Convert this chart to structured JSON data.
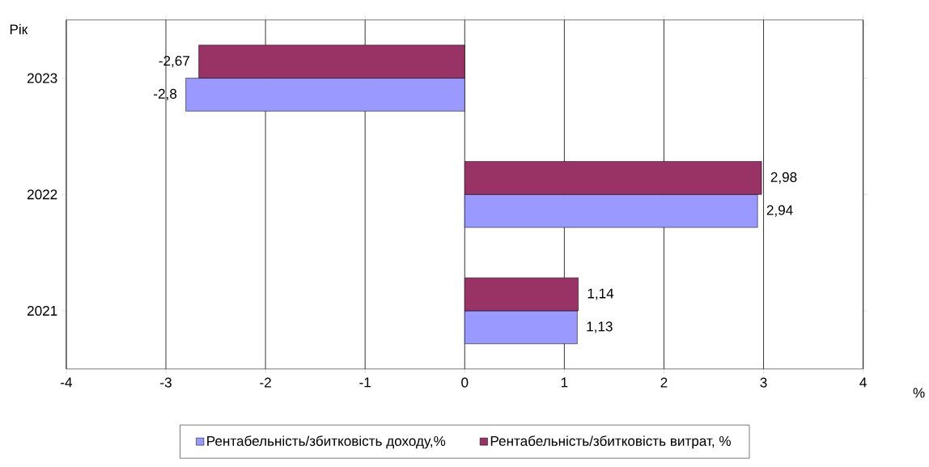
{
  "chart_data": {
    "type": "bar",
    "orientation": "horizontal",
    "ylabel": "Рік",
    "xlabel": "%",
    "categories": [
      "2023",
      "2022",
      "2021"
    ],
    "series": [
      {
        "name": "Рентабельність/збитковість доходу,%",
        "color": "#9999ff",
        "values": [
          -2.8,
          2.94,
          1.13
        ],
        "value_labels": [
          "-2,8",
          "2,94",
          "1,13"
        ]
      },
      {
        "name": "Рентабельність/збитковість витрат, %",
        "color": "#993366",
        "values": [
          -2.67,
          2.98,
          1.14
        ],
        "value_labels": [
          "-2,67",
          "2,98",
          "1,14"
        ]
      }
    ],
    "xlim": [
      -4,
      4
    ],
    "xticks": [
      -4,
      -3,
      -2,
      -1,
      0,
      1,
      2,
      3,
      4
    ],
    "grid": "x",
    "legend": "bottom"
  }
}
